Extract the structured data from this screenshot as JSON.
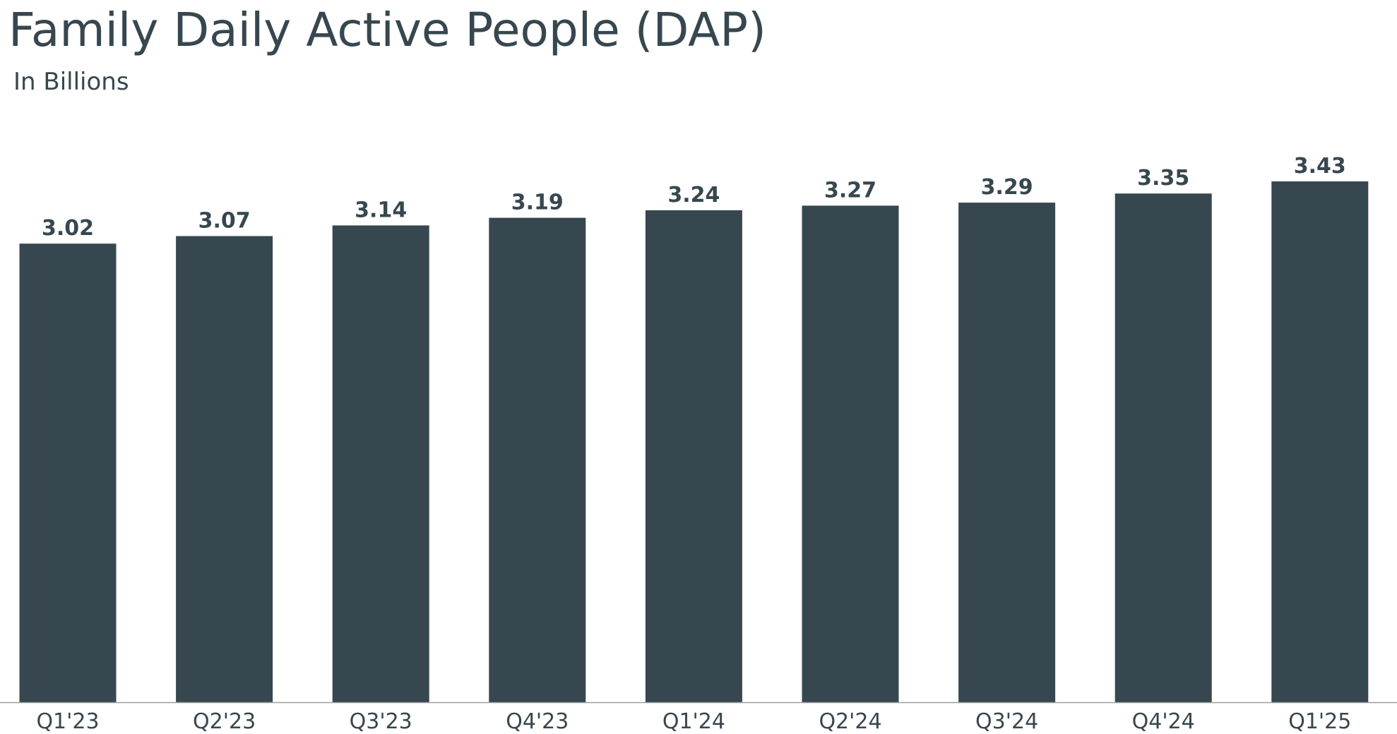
{
  "title": "Family Daily Active People (DAP)",
  "subtitle": "In Billions",
  "colors": {
    "bar": "#37474f",
    "text": "#37474f",
    "axis": "#9e9e9e",
    "background": "#ffffff"
  },
  "chart_data": {
    "type": "bar",
    "title": "Family Daily Active People (DAP)",
    "subtitle": "In Billions",
    "categories": [
      "Q1'23",
      "Q2'23",
      "Q3'23",
      "Q4'23",
      "Q1'24",
      "Q2'24",
      "Q3'24",
      "Q4'24",
      "Q1'25"
    ],
    "values": [
      3.02,
      3.07,
      3.14,
      3.19,
      3.24,
      3.27,
      3.29,
      3.35,
      3.43
    ],
    "value_labels": [
      "3.02",
      "3.07",
      "3.14",
      "3.19",
      "3.24",
      "3.27",
      "3.29",
      "3.35",
      "3.43"
    ],
    "ylim": [
      0,
      3.43
    ],
    "grid": false,
    "legend": "none",
    "show_y_axis": false,
    "data_labels": "above"
  }
}
